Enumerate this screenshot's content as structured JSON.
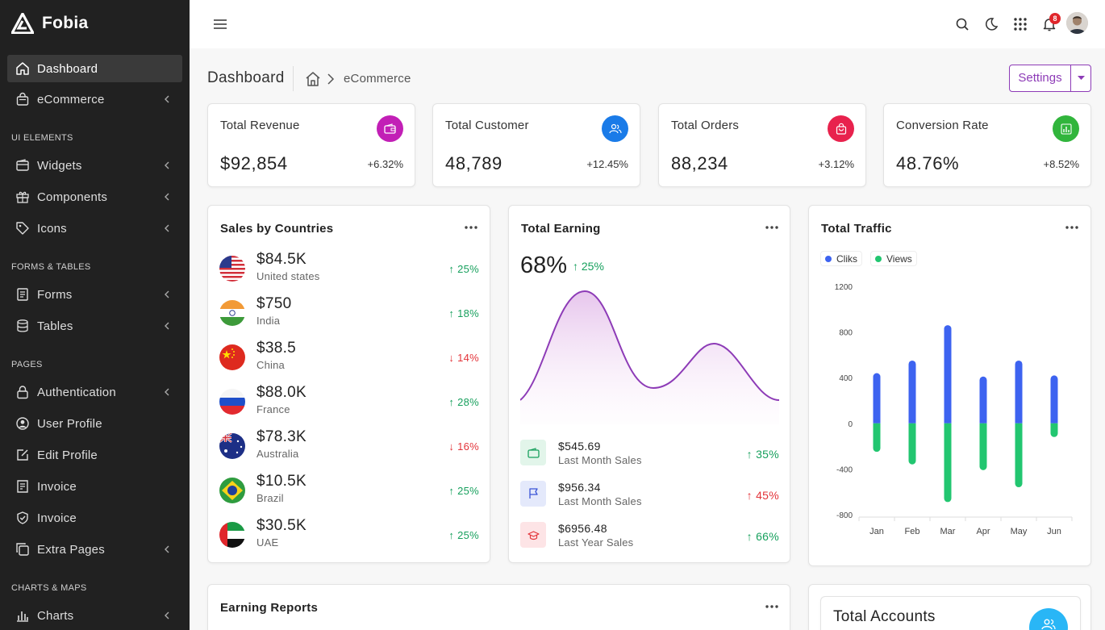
{
  "brand": {
    "name": "Fobia"
  },
  "sidebar": {
    "items": [
      {
        "label": "Dashboard",
        "icon": "home-icon"
      },
      {
        "label": "eCommerce",
        "icon": "shopping-bag-icon"
      },
      {
        "label": "Widgets",
        "icon": "wallet-icon"
      },
      {
        "label": "Components",
        "icon": "gift-icon"
      },
      {
        "label": "Icons",
        "icon": "tag-icon"
      },
      {
        "label": "Forms",
        "icon": "file-text-icon"
      },
      {
        "label": "Tables",
        "icon": "database-icon"
      },
      {
        "label": "Authentication",
        "icon": "lock-icon"
      },
      {
        "label": "User Profile",
        "icon": "user-circle-icon"
      },
      {
        "label": "Edit Profile",
        "icon": "edit-icon"
      },
      {
        "label": "Invoice",
        "icon": "receipt-icon"
      },
      {
        "label": "Invoice",
        "icon": "shield-check-icon"
      },
      {
        "label": "Extra Pages",
        "icon": "copy-icon"
      },
      {
        "label": "Charts",
        "icon": "bar-chart-icon"
      }
    ],
    "sections": [
      "UI ELEMENTS",
      "FORMS & TABLES",
      "PAGES",
      "CHARTS & MAPS"
    ]
  },
  "topbar": {
    "notification_count": "8"
  },
  "breadcrumb": {
    "title": "Dashboard",
    "current": "eCommerce"
  },
  "settings": {
    "label": "Settings"
  },
  "stats": [
    {
      "label": "Total Revenue",
      "value": "$92,854",
      "change": "+6.32%",
      "color": "#c21fb6",
      "icon": "wallet-icon"
    },
    {
      "label": "Total Customer",
      "value": "48,789",
      "change": "+12.45%",
      "color": "#1a7be8",
      "icon": "users-icon"
    },
    {
      "label": "Total Orders",
      "value": "88,234",
      "change": "+3.12%",
      "color": "#e8224d",
      "icon": "shopping-bag-icon"
    },
    {
      "label": "Conversion Rate",
      "value": "48.76%",
      "change": "+8.52%",
      "color": "#31b53c",
      "icon": "bar-chart-icon"
    }
  ],
  "sales_by_countries": {
    "title": "Sales by Countries",
    "rows": [
      {
        "amount": "$84.5K",
        "country": "United states",
        "change": "25%",
        "dir": "up"
      },
      {
        "amount": "$750",
        "country": "India",
        "change": "18%",
        "dir": "up"
      },
      {
        "amount": "$38.5",
        "country": "China",
        "change": "14%",
        "dir": "down"
      },
      {
        "amount": "$88.0K",
        "country": "France",
        "change": "28%",
        "dir": "up"
      },
      {
        "amount": "$78.3K",
        "country": "Australia",
        "change": "16%",
        "dir": "down"
      },
      {
        "amount": "$10.5K",
        "country": "Brazil",
        "change": "25%",
        "dir": "up"
      },
      {
        "amount": "$30.5K",
        "country": "UAE",
        "change": "25%",
        "dir": "up"
      }
    ]
  },
  "total_earning": {
    "title": "Total Earning",
    "percent": "68%",
    "delta": "25%",
    "rows": [
      {
        "amount": "$545.69",
        "label": "Last Month Sales",
        "change": "35%",
        "dir": "up",
        "icon": "wallet-icon",
        "color": "#17a05d",
        "bg": "#e2f5ea"
      },
      {
        "amount": "$956.34",
        "label": "Last Month Sales",
        "change": "45%",
        "dir": "up-red",
        "icon": "flag-icon",
        "color": "#3a55d6",
        "bg": "#e4e9fb"
      },
      {
        "amount": "$6956.48",
        "label": "Last Year Sales",
        "change": "66%",
        "dir": "up",
        "icon": "graduation-cap-icon",
        "color": "#e3343a",
        "bg": "#fde4e6"
      }
    ]
  },
  "total_traffic": {
    "title": "Total Traffic",
    "legend": [
      "Cliks",
      "Views"
    ],
    "colors": [
      "#3d63f0",
      "#22c670"
    ]
  },
  "chart_data": {
    "type": "bar",
    "categories": [
      "Jan",
      "Feb",
      "Mar",
      "Apr",
      "May",
      "Jun"
    ],
    "series": [
      {
        "name": "Cliks",
        "values": [
          440,
          550,
          860,
          410,
          550,
          420
        ]
      },
      {
        "name": "Views",
        "values": [
          -250,
          -360,
          -690,
          -410,
          -560,
          -120
        ]
      }
    ],
    "yticks": [
      "1200",
      "800",
      "400",
      "0",
      "-400",
      "-800"
    ],
    "ylim": [
      -800,
      1200
    ],
    "stacked": true
  },
  "earning_reports": {
    "title": "Earning Reports"
  },
  "total_accounts": {
    "title": "Total Accounts"
  }
}
